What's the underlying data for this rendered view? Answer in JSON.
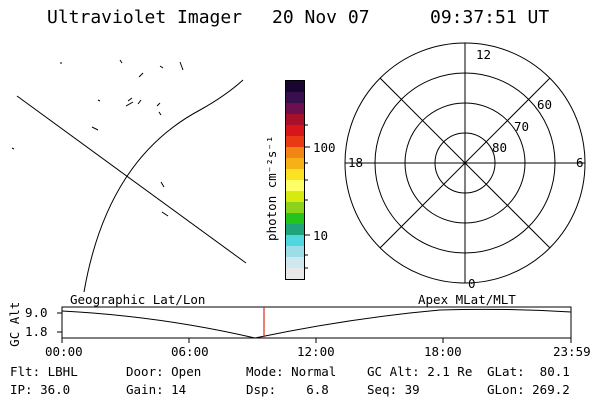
{
  "header": {
    "instrument": "Ultraviolet Imager",
    "date": "20 Nov 07",
    "time": "09:37:51 UT"
  },
  "colorbar": {
    "unit_label": "photon cm⁻²s⁻¹",
    "ticks": [
      "100",
      "10"
    ],
    "scale": "log",
    "colors": [
      "#e8e8e8",
      "#cfe7ef",
      "#9cdde8",
      "#4fd6df",
      "#1ea37a",
      "#25c41c",
      "#8ad21c",
      "#d7ea10",
      "#fefe66",
      "#fbe223",
      "#f6b018",
      "#f28514",
      "#ea3a13",
      "#d8151a",
      "#a80f28",
      "#6c0f4e",
      "#380f4d",
      "#180630"
    ]
  },
  "polar_plot": {
    "mlt_labels": {
      "top": "12",
      "bottom": "0",
      "left": "18",
      "right": "6"
    },
    "lat_labels": [
      "60",
      "70",
      "80"
    ]
  },
  "timeline": {
    "left_label": "Geographic Lat/Lon",
    "right_label": "Apex MLat/MLT",
    "y_axis_label": "GC Alt",
    "y_ticks": [
      "9.0",
      "1.8"
    ],
    "x_ticks": [
      "00:00",
      "06:00",
      "12:00",
      "18:00",
      "23:59"
    ],
    "marker_color": "#e0281e"
  },
  "info": {
    "flt": "Flt: LBHL",
    "door": "Door: Open",
    "mode": "Mode: Normal",
    "gc_alt": "GC Alt: 2.1 Re",
    "glat": "GLat:  80.1",
    "ip": "IP: 36.0",
    "gain": "Gain: 14",
    "dsp": "Dsp:    6.8",
    "seq": "Seq: 39",
    "glon": "GLon: 269.2"
  }
}
